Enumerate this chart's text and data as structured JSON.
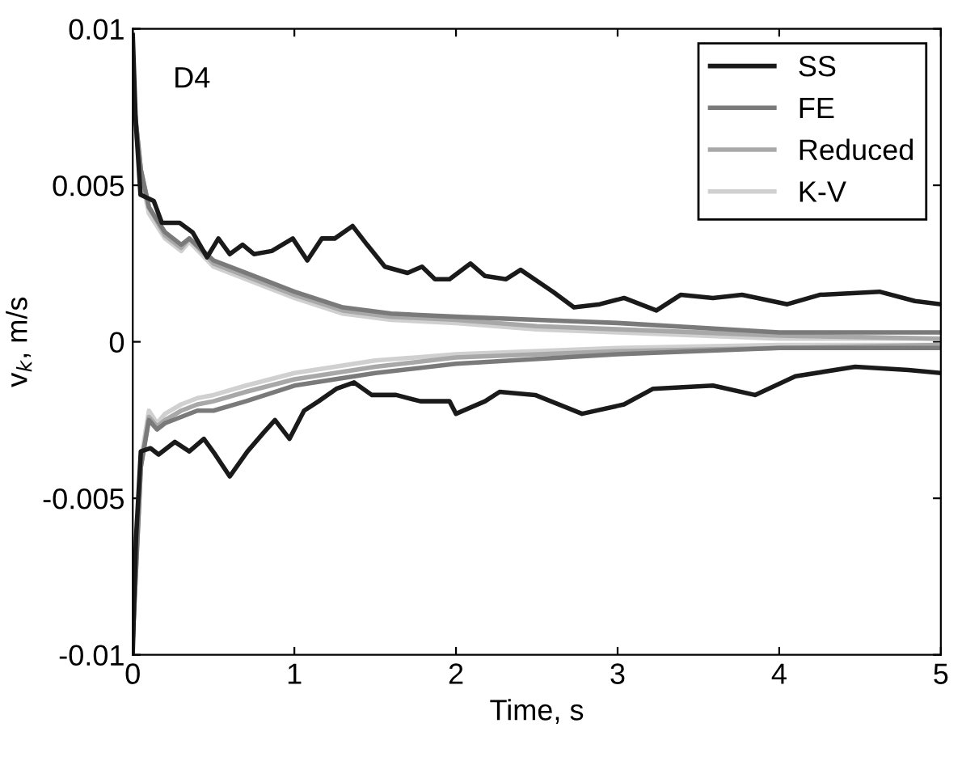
{
  "chart_data": {
    "type": "line",
    "xlabel": "Time, s",
    "ylabel": "v$_{k}$, m/s",
    "annotations": [
      "D4"
    ],
    "xlim": [
      0,
      5
    ],
    "ylim": [
      -0.01,
      0.01
    ],
    "xticks": [
      0,
      1,
      2,
      3,
      4,
      5
    ],
    "yticks": [
      -0.01,
      -0.005,
      0,
      0.005,
      0.01
    ],
    "grid": false,
    "legend": "top right",
    "line_style": "solid",
    "marker": "none",
    "series": [
      {
        "name": "SS",
        "color": "#1a1a1a",
        "x": [
          0,
          0.018,
          0.048,
          0.13,
          0.18,
          0.29,
          0.37,
          0.46,
          0.53,
          0.6,
          0.68,
          0.75,
          0.86,
          0.99,
          1.08,
          1.17,
          1.25,
          1.36,
          1.45,
          1.56,
          1.7,
          1.79,
          1.87,
          1.96,
          2.09,
          2.18,
          2.31,
          2.4,
          2.6,
          2.73,
          2.89,
          3.04,
          3.24,
          3.39,
          3.59,
          3.77,
          4.05,
          4.25,
          4.62,
          4.84,
          5
        ],
        "values": [
          0.0098,
          0.0071,
          0.0047,
          0.0045,
          0.0038,
          0.0038,
          0.0035,
          0.0027,
          0.0033,
          0.0028,
          0.0031,
          0.0028,
          0.0029,
          0.0033,
          0.0026,
          0.0033,
          0.0033,
          0.0037,
          0.0031,
          0.0024,
          0.0022,
          0.0024,
          0.002,
          0.002,
          0.0025,
          0.0021,
          0.002,
          0.0023,
          0.0016,
          0.0011,
          0.0012,
          0.0014,
          0.001,
          0.0015,
          0.0014,
          0.0015,
          0.0012,
          0.0015,
          0.0016,
          0.0013,
          0.0012
        ]
      },
      {
        "name": "FE",
        "color": "#7a7a7a",
        "x": [
          0,
          0.05,
          0.1,
          0.2,
          0.3,
          0.35,
          0.5,
          0.7,
          1.0,
          1.3,
          1.6,
          2.0,
          2.5,
          3,
          4,
          5
        ],
        "values": [
          0.008,
          0.0055,
          0.0043,
          0.0035,
          0.0031,
          0.0033,
          0.0026,
          0.0022,
          0.0016,
          0.0011,
          0.0009,
          0.0008,
          0.0007,
          0.0006,
          0.0003,
          0.0003
        ]
      },
      {
        "name": "Reduced",
        "color": "#a8a8a8",
        "x": [
          0,
          0.05,
          0.1,
          0.2,
          0.3,
          0.35,
          0.5,
          0.7,
          1.0,
          1.3,
          1.6,
          2.0,
          2.5,
          3,
          4,
          5
        ],
        "values": [
          0.008,
          0.0055,
          0.0043,
          0.0034,
          0.003,
          0.0033,
          0.0025,
          0.0021,
          0.0015,
          0.001,
          0.0008,
          0.0007,
          0.0005,
          0.0004,
          0.0002,
          0.0001
        ]
      },
      {
        "name": "K-V",
        "color": "#d0d0d0",
        "x": [
          0,
          0.05,
          0.1,
          0.2,
          0.3,
          0.35,
          0.5,
          0.7,
          1.0,
          1.3,
          1.6,
          2.0,
          2.5,
          3,
          4,
          5
        ],
        "values": [
          0.0078,
          0.0053,
          0.0041,
          0.0033,
          0.0029,
          0.0032,
          0.0024,
          0.002,
          0.0014,
          0.0009,
          0.0007,
          0.0006,
          0.0004,
          0.0003,
          0.0001,
          0.0001
        ]
      },
      {
        "color": "#1a1a1a",
        "x": [
          0,
          0.02,
          0.05,
          0.11,
          0.16,
          0.26,
          0.35,
          0.44,
          0.51,
          0.6,
          0.71,
          0.81,
          0.88,
          0.97,
          1.06,
          1.15,
          1.26,
          1.37,
          1.48,
          1.63,
          1.78,
          1.96,
          2.0,
          2.18,
          2.27,
          2.49,
          2.78,
          3.04,
          3.22,
          3.59,
          3.85,
          4.1,
          4.47,
          4.8,
          5
        ],
        "values": [
          -0.0099,
          -0.0063,
          -0.0035,
          -0.0034,
          -0.0036,
          -0.0032,
          -0.0035,
          -0.0031,
          -0.0036,
          -0.0043,
          -0.0035,
          -0.0029,
          -0.0025,
          -0.0031,
          -0.0022,
          -0.0019,
          -0.0015,
          -0.0013,
          -0.0017,
          -0.0017,
          -0.0019,
          -0.0019,
          -0.0023,
          -0.0019,
          -0.0016,
          -0.0017,
          -0.0023,
          -0.002,
          -0.0015,
          -0.0014,
          -0.0017,
          -0.0011,
          -0.0008,
          -0.0009,
          -0.001
        ]
      },
      {
        "color": "#7a7a7a",
        "x": [
          0,
          0.05,
          0.1,
          0.15,
          0.2,
          0.3,
          0.4,
          0.5,
          0.7,
          1.0,
          1.5,
          2.0,
          3,
          4,
          5
        ],
        "values": [
          -0.0095,
          -0.004,
          -0.0025,
          -0.0028,
          -0.0026,
          -0.0024,
          -0.0022,
          -0.0022,
          -0.0019,
          -0.0014,
          -0.001,
          -0.0007,
          -0.0004,
          -0.0002,
          -0.0002
        ]
      },
      {
        "color": "#a8a8a8",
        "x": [
          0,
          0.05,
          0.1,
          0.15,
          0.2,
          0.3,
          0.4,
          0.5,
          0.7,
          1.0,
          1.5,
          2.0,
          3,
          4,
          5
        ],
        "values": [
          -0.0095,
          -0.004,
          -0.0024,
          -0.0027,
          -0.0025,
          -0.0022,
          -0.002,
          -0.0019,
          -0.0016,
          -0.0012,
          -0.0008,
          -0.0005,
          -0.0003,
          -0.0002,
          -0.0001
        ]
      },
      {
        "color": "#d0d0d0",
        "x": [
          0.05,
          0.1,
          0.15,
          0.2,
          0.3,
          0.4,
          0.5,
          0.7,
          1.0,
          1.5,
          2.0,
          3,
          4,
          5
        ],
        "values": [
          -0.0038,
          -0.0022,
          -0.0026,
          -0.0023,
          -0.002,
          -0.0018,
          -0.0017,
          -0.0014,
          -0.001,
          -0.0006,
          -0.0004,
          -0.0002,
          -0.0001,
          -0.0001
        ]
      }
    ]
  }
}
